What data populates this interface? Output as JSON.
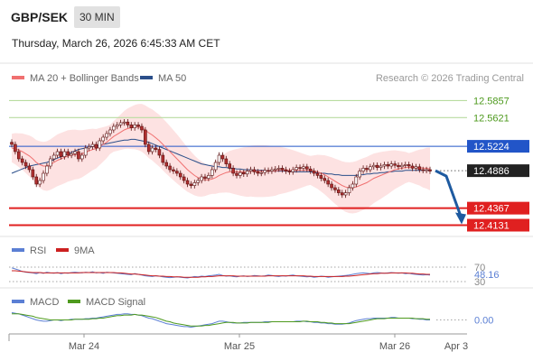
{
  "header": {
    "pair": "GBP/SEK",
    "timeframe": "30 MIN",
    "datetime": "Thursday, March 26, 2026 6:45:33 AM CET"
  },
  "legend": {
    "ma20": "MA 20 + Bollinger Bands",
    "ma50": "MA 50",
    "credit": "Research © 2026 Trading Central",
    "rsi": "RSI",
    "rsi_ma": "9MA",
    "macd": "MACD",
    "macd_signal": "MACD Signal"
  },
  "colors": {
    "ma20": "#f07070",
    "ma50": "#2b4f8a",
    "band_fill": "#fde2e2",
    "candle_up": "#ffffff",
    "candle_down": "#b03030",
    "candle_outline": "#5a1010",
    "resistance_green": "#b8dca0",
    "pivot_blue": "#2255c8",
    "support_red": "#e02020",
    "arrow": "#1e5aa0",
    "rsi": "#5b7fd4",
    "rsi_ma": "#cc2020",
    "macd": "#5b7fd4",
    "macd_signal": "#4e9a1e"
  },
  "chart_data": [
    {
      "type": "candlestick",
      "ylim": [
        12.4,
        12.6
      ],
      "x_labels": [
        "Mar 24",
        "Mar 25",
        "Mar 26",
        "Apr 3"
      ],
      "levels": [
        {
          "value": 12.5857,
          "label": "12.5857",
          "kind": "resistance"
        },
        {
          "value": 12.5621,
          "label": "12.5621",
          "kind": "resistance"
        },
        {
          "value": 12.5224,
          "label": "12.5224",
          "kind": "pivot"
        },
        {
          "value": 12.4886,
          "label": "12.4886",
          "kind": "last"
        },
        {
          "value": 12.4367,
          "label": "12.4367",
          "kind": "support"
        },
        {
          "value": 12.4131,
          "label": "12.4131",
          "kind": "support"
        }
      ],
      "close": [
        12.525,
        12.515,
        12.505,
        12.5,
        12.495,
        12.49,
        12.48,
        12.47,
        12.475,
        12.485,
        12.495,
        12.505,
        12.51,
        12.515,
        12.508,
        12.515,
        12.51,
        12.512,
        12.515,
        12.505,
        12.51,
        12.52,
        12.522,
        12.525,
        12.52,
        12.53,
        12.535,
        12.54,
        12.545,
        12.55,
        12.552,
        12.555,
        12.556,
        12.552,
        12.548,
        12.552,
        12.55,
        12.545,
        12.525,
        12.515,
        12.52,
        12.518,
        12.51,
        12.5,
        12.495,
        12.49,
        12.488,
        12.485,
        12.48,
        12.475,
        12.47,
        12.468,
        12.472,
        12.475,
        12.48,
        12.478,
        12.482,
        12.49,
        12.5,
        12.51,
        12.505,
        12.498,
        12.492,
        12.485,
        12.482,
        12.486,
        12.484,
        12.488,
        12.49,
        12.487,
        12.485,
        12.486,
        12.489,
        12.488,
        12.49,
        12.491,
        12.492,
        12.49,
        12.488,
        12.487,
        12.49,
        12.493,
        12.492,
        12.494,
        12.491,
        12.488,
        12.485,
        12.482,
        12.478,
        12.475,
        12.47,
        12.465,
        12.462,
        12.458,
        12.455,
        12.458,
        12.465,
        12.47,
        12.48,
        12.488,
        12.492,
        12.49,
        12.494,
        12.496,
        12.493,
        12.495,
        12.497,
        12.495,
        12.498,
        12.496,
        12.494,
        12.496,
        12.497,
        12.495,
        12.492,
        12.494,
        12.49,
        12.489,
        12.49,
        12.488
      ],
      "ma20": [
        12.52,
        12.519,
        12.517,
        12.515,
        12.512,
        12.509,
        12.505,
        12.5,
        12.497,
        12.495,
        12.495,
        12.497,
        12.5,
        12.503,
        12.505,
        12.507,
        12.509,
        12.51,
        12.511,
        12.511,
        12.512,
        12.514,
        12.516,
        12.518,
        12.519,
        12.522,
        12.525,
        12.528,
        12.532,
        12.536,
        12.539,
        12.542,
        12.545,
        12.547,
        12.548,
        12.549,
        12.549,
        12.548,
        12.545,
        12.541,
        12.538,
        12.534,
        12.53,
        12.525,
        12.52,
        12.515,
        12.51,
        12.505,
        12.5,
        12.495,
        12.49,
        12.486,
        12.482,
        12.479,
        12.477,
        12.476,
        12.476,
        12.477,
        12.479,
        12.482,
        12.484,
        12.486,
        12.487,
        12.487,
        12.487,
        12.487,
        12.487,
        12.487,
        12.488,
        12.488,
        12.488,
        12.488,
        12.488,
        12.488,
        12.488,
        12.488,
        12.489,
        12.489,
        12.489,
        12.489,
        12.489,
        12.489,
        12.489,
        12.489,
        12.489,
        12.489,
        12.488,
        12.487,
        12.485,
        12.483,
        12.48,
        12.477,
        12.474,
        12.471,
        12.468,
        12.466,
        12.465,
        12.465,
        12.466,
        12.468,
        12.47,
        12.472,
        12.475,
        12.478,
        12.48,
        12.482,
        12.484,
        12.486,
        12.488,
        12.49,
        12.491,
        12.492,
        12.493,
        12.493,
        12.493,
        12.493,
        12.493,
        12.492,
        12.492,
        12.491
      ],
      "ma50": [
        12.485,
        12.487,
        12.489,
        12.491,
        12.493,
        12.495,
        12.496,
        12.497,
        12.498,
        12.499,
        12.5,
        12.502,
        12.504,
        12.506,
        12.508,
        12.51,
        12.512,
        12.514,
        12.516,
        12.518,
        12.519,
        12.52,
        12.521,
        12.522,
        12.523,
        12.524,
        12.525,
        12.526,
        12.527,
        12.528,
        12.529,
        12.53,
        12.531,
        12.531,
        12.532,
        12.532,
        12.531,
        12.53,
        12.529,
        12.528,
        12.526,
        12.524,
        12.522,
        12.52,
        12.518,
        12.516,
        12.514,
        12.512,
        12.51,
        12.508,
        12.506,
        12.504,
        12.502,
        12.5,
        12.498,
        12.497,
        12.496,
        12.495,
        12.494,
        12.494,
        12.493,
        12.493,
        12.492,
        12.492,
        12.491,
        12.491,
        12.49,
        12.49,
        12.49,
        12.489,
        12.489,
        12.489,
        12.489,
        12.488,
        12.488,
        12.488,
        12.488,
        12.488,
        12.488,
        12.488,
        12.487,
        12.487,
        12.487,
        12.487,
        12.487,
        12.487,
        12.486,
        12.486,
        12.485,
        12.485,
        12.484,
        12.484,
        12.483,
        12.483,
        12.482,
        12.482,
        12.482,
        12.482,
        12.482,
        12.483,
        12.483,
        12.484,
        12.484,
        12.485,
        12.485,
        12.486,
        12.486,
        12.487,
        12.487,
        12.488,
        12.488,
        12.488,
        12.489,
        12.489,
        12.489,
        12.489,
        12.489,
        12.489,
        12.489,
        12.489
      ],
      "bb_width": 0.036,
      "forecast": {
        "from": 12.4886,
        "to": 12.4131
      }
    },
    {
      "type": "line",
      "name": "RSI",
      "ylim": [
        30,
        70
      ],
      "y_ticks": [
        "70",
        "30"
      ],
      "current_label": "48.16",
      "values": [
        68,
        65,
        62,
        58,
        56,
        55,
        54,
        52,
        55,
        53,
        56,
        54,
        53,
        55,
        52,
        54,
        53,
        55,
        56,
        55,
        54,
        56,
        55,
        57,
        54,
        55,
        53,
        56,
        55,
        54,
        53,
        52,
        51,
        50,
        49,
        52,
        50,
        48,
        46,
        45,
        44,
        46,
        45,
        43,
        42,
        41,
        42,
        43,
        42,
        41,
        40,
        42,
        44,
        43,
        45,
        44,
        46,
        47,
        48,
        50,
        47,
        45,
        46,
        44,
        43,
        45,
        46,
        44,
        45,
        47,
        46,
        45,
        46,
        48,
        47,
        45,
        44,
        46,
        45,
        47,
        48,
        46,
        45,
        44,
        43,
        44,
        42,
        43,
        45,
        44,
        42,
        43,
        44,
        45,
        46,
        47,
        48,
        50,
        52,
        53,
        54,
        53,
        52,
        54,
        55,
        54,
        53,
        54,
        55,
        54,
        53,
        54,
        52,
        53,
        51,
        50,
        49,
        48,
        49,
        48
      ],
      "ma_values": [
        60,
        60,
        59,
        58,
        57,
        56,
        55,
        55,
        55,
        54,
        54,
        54,
        54,
        54,
        54,
        54,
        54,
        54,
        54,
        54,
        55,
        55,
        55,
        55,
        55,
        55,
        55,
        55,
        55,
        55,
        54,
        54,
        53,
        52,
        51,
        51,
        50,
        49,
        48,
        47,
        46,
        46,
        45,
        45,
        44,
        44,
        43,
        43,
        43,
        42,
        42,
        42,
        42,
        42,
        43,
        43,
        44,
        44,
        45,
        46,
        46,
        46,
        46,
        46,
        45,
        45,
        45,
        45,
        45,
        45,
        45,
        45,
        45,
        46,
        46,
        46,
        46,
        46,
        46,
        46,
        46,
        46,
        46,
        46,
        45,
        45,
        44,
        44,
        44,
        44,
        44,
        44,
        44,
        44,
        44,
        45,
        45,
        46,
        47,
        48,
        49,
        50,
        51,
        52,
        52,
        53,
        53,
        53,
        54,
        54,
        54,
        54,
        54,
        53,
        53,
        52,
        51,
        51,
        50,
        50
      ]
    },
    {
      "type": "line",
      "name": "MACD",
      "ylim": [
        -0.02,
        0.02
      ],
      "zero_label": "0.00",
      "macd": [
        0.012,
        0.011,
        0.01,
        0.008,
        0.006,
        0.004,
        0.002,
        0.0,
        -0.001,
        -0.002,
        -0.002,
        -0.001,
        0.0,
        0.0,
        -0.001,
        0.0,
        0.0,
        0.001,
        0.001,
        0.001,
        0.001,
        0.002,
        0.002,
        0.003,
        0.003,
        0.004,
        0.005,
        0.006,
        0.007,
        0.008,
        0.009,
        0.009,
        0.01,
        0.01,
        0.009,
        0.009,
        0.008,
        0.007,
        0.005,
        0.003,
        0.002,
        0.0,
        -0.002,
        -0.004,
        -0.006,
        -0.007,
        -0.008,
        -0.009,
        -0.01,
        -0.011,
        -0.011,
        -0.012,
        -0.011,
        -0.01,
        -0.009,
        -0.008,
        -0.007,
        -0.006,
        -0.004,
        -0.002,
        -0.002,
        -0.003,
        -0.004,
        -0.005,
        -0.005,
        -0.005,
        -0.004,
        -0.004,
        -0.004,
        -0.004,
        -0.004,
        -0.004,
        -0.003,
        -0.003,
        -0.003,
        -0.003,
        -0.003,
        -0.003,
        -0.003,
        -0.003,
        -0.003,
        -0.002,
        -0.002,
        -0.002,
        -0.003,
        -0.003,
        -0.004,
        -0.004,
        -0.005,
        -0.005,
        -0.006,
        -0.006,
        -0.007,
        -0.007,
        -0.007,
        -0.006,
        -0.005,
        -0.003,
        -0.001,
        0.0,
        0.001,
        0.002,
        0.002,
        0.003,
        0.003,
        0.003,
        0.003,
        0.003,
        0.004,
        0.004,
        0.003,
        0.003,
        0.003,
        0.003,
        0.002,
        0.002,
        0.001,
        0.001,
        0.0,
        0.0
      ],
      "signal": [
        0.01,
        0.01,
        0.01,
        0.009,
        0.008,
        0.007,
        0.006,
        0.004,
        0.003,
        0.002,
        0.001,
        0.0,
        0.0,
        0.0,
        0.0,
        0.0,
        0.0,
        0.0,
        0.001,
        0.001,
        0.001,
        0.001,
        0.001,
        0.002,
        0.002,
        0.003,
        0.003,
        0.004,
        0.005,
        0.006,
        0.007,
        0.007,
        0.008,
        0.008,
        0.008,
        0.009,
        0.008,
        0.008,
        0.007,
        0.006,
        0.005,
        0.004,
        0.002,
        0.0,
        -0.002,
        -0.003,
        -0.005,
        -0.006,
        -0.007,
        -0.008,
        -0.009,
        -0.01,
        -0.01,
        -0.01,
        -0.01,
        -0.009,
        -0.009,
        -0.008,
        -0.007,
        -0.006,
        -0.005,
        -0.004,
        -0.004,
        -0.004,
        -0.005,
        -0.005,
        -0.005,
        -0.005,
        -0.004,
        -0.004,
        -0.004,
        -0.004,
        -0.004,
        -0.004,
        -0.003,
        -0.003,
        -0.003,
        -0.003,
        -0.003,
        -0.003,
        -0.003,
        -0.003,
        -0.003,
        -0.002,
        -0.002,
        -0.003,
        -0.003,
        -0.003,
        -0.004,
        -0.004,
        -0.005,
        -0.005,
        -0.006,
        -0.006,
        -0.006,
        -0.006,
        -0.006,
        -0.005,
        -0.004,
        -0.003,
        -0.002,
        -0.001,
        0.0,
        0.001,
        0.002,
        0.002,
        0.002,
        0.003,
        0.003,
        0.003,
        0.003,
        0.003,
        0.003,
        0.003,
        0.003,
        0.002,
        0.002,
        0.002,
        0.001,
        0.001
      ]
    }
  ]
}
